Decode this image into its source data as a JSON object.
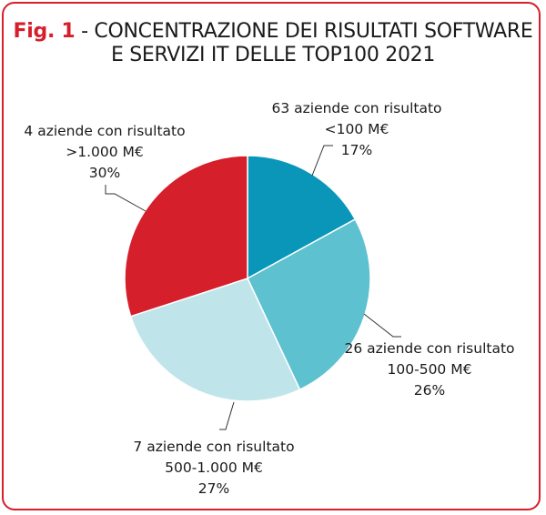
{
  "title": {
    "fig_label": "Fig. 1",
    "separator": " - ",
    "line1": "CONCENTRAZIONE DEI RISULTATI SOFTWARE",
    "line2": "E SERVIZI IT DELLE TOP100 2021"
  },
  "colors": {
    "accent": "#d51f2b",
    "text": "#1a1a1a"
  },
  "chart_data": {
    "type": "pie",
    "title": "CONCENTRAZIONE DEI RISULTATI SOFTWARE E SERVIZI IT DELLE TOP100 2021",
    "slices": [
      {
        "label_line1": "63 aziende con risultato",
        "label_line2": "<100 M€",
        "percent_label": "17%",
        "value": 17,
        "color": "#0996b9"
      },
      {
        "label_line1": "26 aziende con risultato",
        "label_line2": "100-500 M€",
        "percent_label": "26%",
        "value": 26,
        "color": "#5dc1d0"
      },
      {
        "label_line1": "7 aziende con risultato",
        "label_line2": "500-1.000 M€",
        "percent_label": "27%",
        "value": 27,
        "color": "#bfe5ea"
      },
      {
        "label_line1": "4 aziende con risultato",
        "label_line2": ">1.000 M€",
        "percent_label": "30%",
        "value": 30,
        "color": "#d51f2b"
      }
    ]
  }
}
